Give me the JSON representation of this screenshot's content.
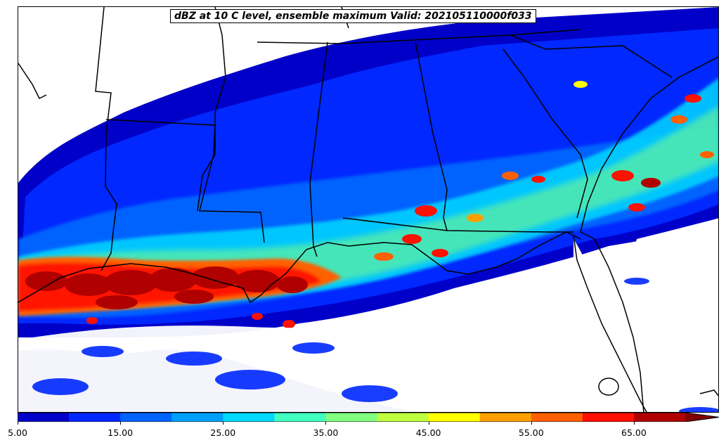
{
  "title": "dBZ at 10 C level, ensemble maximum Valid: 202105110000f033",
  "colorbar": {
    "min": 5.0,
    "max": 70.0,
    "extend": "max",
    "tick_labels": [
      "5.00",
      "15.00",
      "25.00",
      "35.00",
      "45.00",
      "55.00",
      "65.00"
    ],
    "tick_values": [
      5,
      15,
      25,
      35,
      45,
      55,
      65
    ],
    "bins": [
      {
        "from": 5,
        "to": 10,
        "color": "#0000c8"
      },
      {
        "from": 10,
        "to": 15,
        "color": "#0028ff"
      },
      {
        "from": 15,
        "to": 20,
        "color": "#0064ff"
      },
      {
        "from": 20,
        "to": 25,
        "color": "#00a0ff"
      },
      {
        "from": 25,
        "to": 30,
        "color": "#00d8ff"
      },
      {
        "from": 30,
        "to": 35,
        "color": "#40ffc0"
      },
      {
        "from": 35,
        "to": 40,
        "color": "#80ff80"
      },
      {
        "from": 40,
        "to": 45,
        "color": "#c0ff40"
      },
      {
        "from": 45,
        "to": 50,
        "color": "#ffff00"
      },
      {
        "from": 50,
        "to": 55,
        "color": "#ffa000"
      },
      {
        "from": 55,
        "to": 60,
        "color": "#ff6000"
      },
      {
        "from": 60,
        "to": 65,
        "color": "#ff1000"
      },
      {
        "from": 65,
        "to": 70,
        "color": "#b00000"
      }
    ],
    "over_color": "#800000"
  },
  "map": {
    "region": "Southeastern United States and northern Gulf of Mexico",
    "field": "simulated reflectivity (dBZ)",
    "features": [
      "state-borders",
      "coastlines"
    ]
  }
}
